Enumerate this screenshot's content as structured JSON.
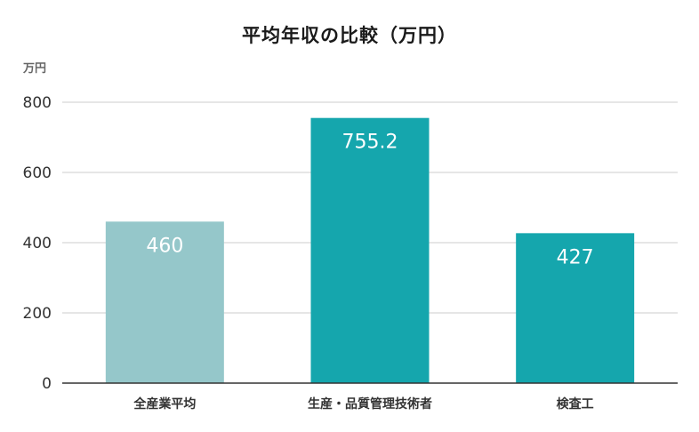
{
  "chart_data": {
    "type": "bar",
    "title": "平均年収の比較（万円）",
    "ylabel": "万円",
    "xlabel": "",
    "categories": [
      "全産業平均",
      "生産・品質管理技術者",
      "検査工"
    ],
    "values": [
      460,
      755.2,
      427
    ],
    "data_labels": [
      "460",
      "755.2",
      "427"
    ],
    "bar_colors": [
      "#95c7ca",
      "#15a6ad",
      "#15a6ad"
    ],
    "ylim": [
      0,
      800
    ],
    "yticks": [
      0,
      200,
      400,
      600,
      800
    ],
    "ytick_labels": [
      "0",
      "200",
      "400",
      "600",
      "800"
    ],
    "grid": true,
    "legend": "none"
  },
  "colors": {
    "grid": "#cccccc",
    "axis": "#333333",
    "tick_label": "#333333",
    "data_label": "#ffffff"
  }
}
